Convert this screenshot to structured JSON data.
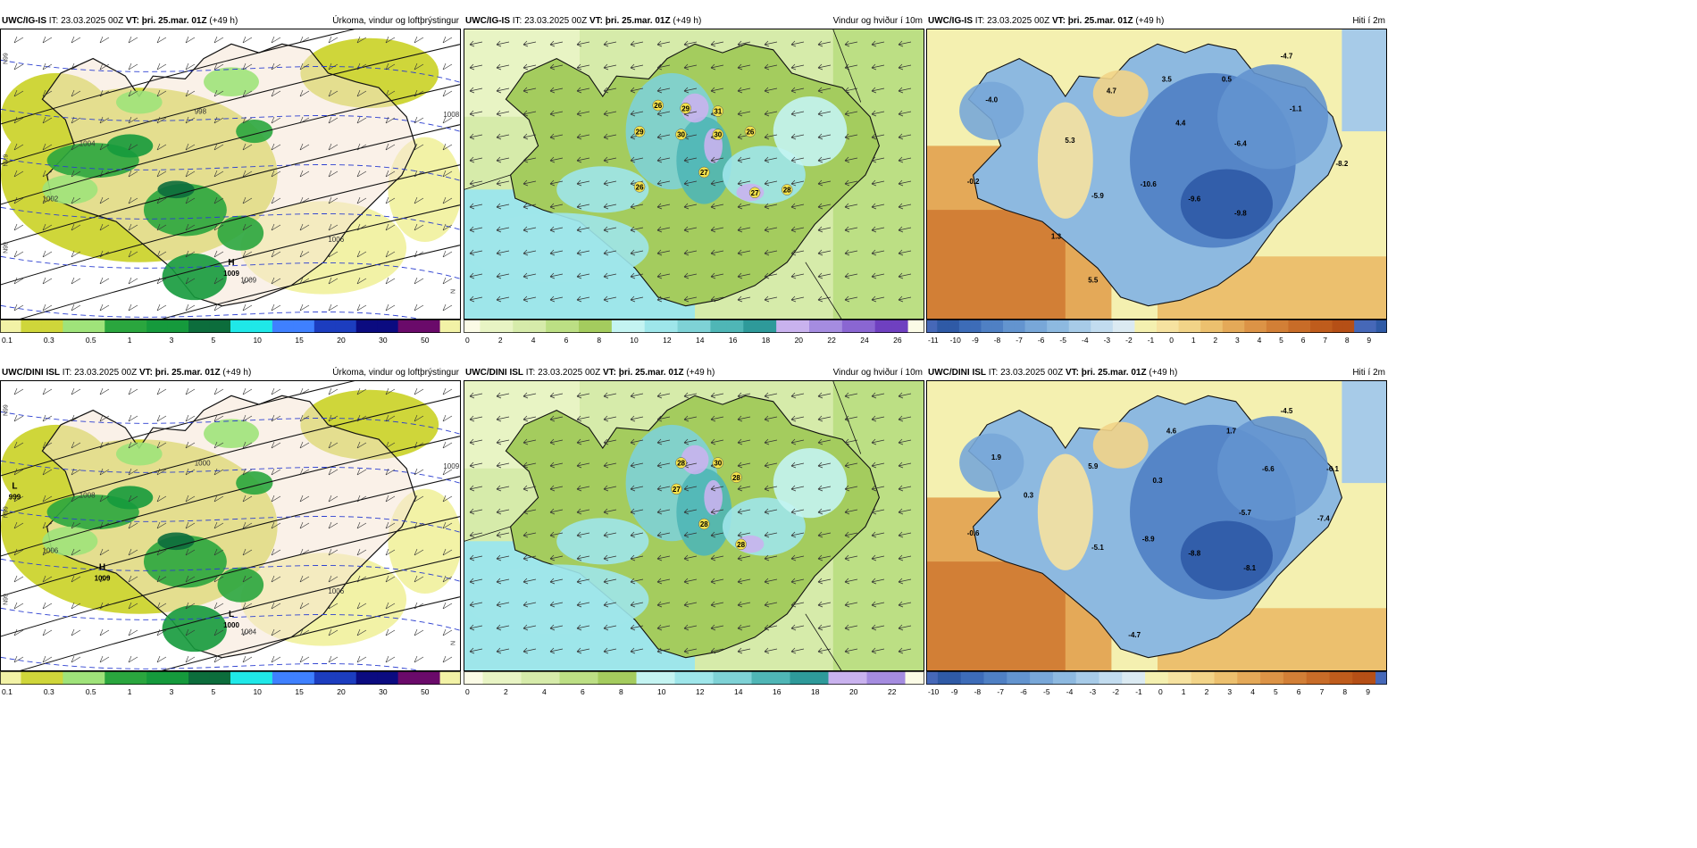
{
  "colors": {
    "precip": [
      "#ffffff",
      "#f2f2a6",
      "#cfd63a",
      "#9fe37a",
      "#2aa63e",
      "#159a3c",
      "#0c6d3c",
      "#1fe8e8",
      "#3f80ff",
      "#1c3dbf",
      "#0b0b80",
      "#6a0a6a",
      "#b1177a",
      "#ff1b8c",
      "#ff2020"
    ],
    "wind": [
      "#fbfbe6",
      "#e8f4c4",
      "#d6ebaa",
      "#bcdf84",
      "#a4cc5e",
      "#c4f4f2",
      "#9ee6ea",
      "#7ed2d6",
      "#4fb6b6",
      "#2e9a9a",
      "#c9b2ee",
      "#a58ce0",
      "#8a66d2",
      "#6f40c0",
      "#f4a0a0",
      "#e47070"
    ],
    "temp": [
      "#4668b8",
      "#2f5aa6",
      "#3d6cb8",
      "#4f80c4",
      "#6394cf",
      "#78a7d8",
      "#8db9e0",
      "#a7cbe8",
      "#c2dcef",
      "#dbeaf2",
      "#f4f0b0",
      "#f6e2a0",
      "#f2d488",
      "#ecc06e",
      "#e4a958",
      "#dc9346",
      "#d27f36",
      "#c86c28",
      "#bf5c1c",
      "#b54f16"
    ],
    "land": "#f6e6d6"
  },
  "panels": [
    {
      "model": "UWC/IG-IS",
      "it_label": "IT:",
      "it_value": "23.03.2025 00Z",
      "vt_label": "VT:",
      "vt_value": "þri. 25.mar. 01Z",
      "lead": "(+49 h)",
      "title": "Úrkoma, vindur og loftþrýstingur",
      "type": "precip",
      "colorbar_labels": [
        "0.1",
        "0.3",
        "0.5",
        "1",
        "3",
        "5",
        "10",
        "15",
        "20",
        "30",
        "50"
      ],
      "pressure_labels": [
        "998",
        "1009",
        "1002",
        "1004",
        "1006",
        "1008"
      ],
      "pressure_centers": [
        {
          "letter": "H",
          "value": "1009"
        }
      ],
      "side_labels": [
        "N99",
        "N99",
        "Nv.9",
        "N"
      ]
    },
    {
      "model": "UWC/IG-IS",
      "it_label": "IT:",
      "it_value": "23.03.2025 00Z",
      "vt_label": "VT:",
      "vt_value": "þri. 25.mar. 01Z",
      "lead": "(+49 h)",
      "title": "Vindur og hviður í 10m",
      "type": "wind",
      "colorbar_labels": [
        "0",
        "2",
        "4",
        "6",
        "8",
        "10",
        "12",
        "14",
        "16",
        "18",
        "20",
        "22",
        "24",
        "26"
      ],
      "max_labels": [
        "26",
        "29",
        "31",
        "29",
        "30",
        "30",
        "26",
        "27",
        "26",
        "27",
        "28"
      ]
    },
    {
      "model": "UWC/IG-IS",
      "it_label": "IT:",
      "it_value": "23.03.2025 00Z",
      "vt_label": "VT:",
      "vt_value": "þri. 25.mar. 01Z",
      "lead": "(+49 h)",
      "title": "Hiti í 2m",
      "type": "temp",
      "colorbar_labels": [
        "-11",
        "-10",
        "-9",
        "-8",
        "-7",
        "-6",
        "-5",
        "-4",
        "-3",
        "-2",
        "-1",
        "0",
        "1",
        "2",
        "3",
        "4",
        "5",
        "6",
        "7",
        "8",
        "9"
      ],
      "point_labels": [
        "-4.0",
        "4.7",
        "3.5",
        "0.5",
        "-4.7",
        "-1.1",
        "5.3",
        "4.4",
        "-6.4",
        "-8.2",
        "-0.2",
        "-5.9",
        "-10.6",
        "-9.6",
        "-9.8",
        "1.3",
        "5.5"
      ]
    },
    {
      "model": "UWC/DINI ISL",
      "it_label": "IT:",
      "it_value": "23.03.2025 00Z",
      "vt_label": "VT:",
      "vt_value": "þri. 25.mar. 01Z",
      "lead": "(+49 h)",
      "title": "Úrkoma, vindur og loftþrýstingur",
      "type": "precip",
      "colorbar_labels": [
        "0.1",
        "0.3",
        "0.5",
        "1",
        "3",
        "5",
        "10",
        "15",
        "20",
        "30",
        "50"
      ],
      "pressure_labels": [
        "1000",
        "1004",
        "1006",
        "1008",
        "1006",
        "1009"
      ],
      "pressure_centers": [
        {
          "letter": "L",
          "value": "1000"
        },
        {
          "letter": "L",
          "value": "999"
        },
        {
          "letter": "H",
          "value": "1009"
        }
      ],
      "side_labels": [
        "N99",
        "N99",
        "N99",
        "N"
      ]
    },
    {
      "model": "UWC/DINI ISL",
      "it_label": "IT:",
      "it_value": "23.03.2025 00Z",
      "vt_label": "VT:",
      "vt_value": "þri. 25.mar. 01Z",
      "lead": "(+49 h)",
      "title": "Vindur og hviður í 10m",
      "type": "wind",
      "colorbar_labels": [
        "0",
        "2",
        "4",
        "6",
        "8",
        "10",
        "12",
        "14",
        "16",
        "18",
        "20",
        "22"
      ],
      "max_labels": [
        "28",
        "30",
        "28",
        "27",
        "28",
        "28"
      ]
    },
    {
      "model": "UWC/DINI ISL",
      "it_label": "IT:",
      "it_value": "23.03.2025 00Z",
      "vt_label": "VT:",
      "vt_value": "þri. 25.mar. 01Z",
      "lead": "(+49 h)",
      "title": "Hiti í 2m",
      "type": "temp",
      "colorbar_labels": [
        "-10",
        "-9",
        "-8",
        "-7",
        "-6",
        "-5",
        "-4",
        "-3",
        "-2",
        "-1",
        "0",
        "1",
        "2",
        "3",
        "4",
        "5",
        "6",
        "7",
        "8",
        "9"
      ],
      "point_labels": [
        "-4.5",
        "1.9",
        "5.9",
        "4.6",
        "1.7",
        "-6.6",
        "-6.1",
        "0.3",
        "0.3",
        "-5.7",
        "-7.4",
        "-0.6",
        "-5.1",
        "-8.9",
        "-8.8",
        "-8.1",
        "-4.7"
      ]
    }
  ]
}
